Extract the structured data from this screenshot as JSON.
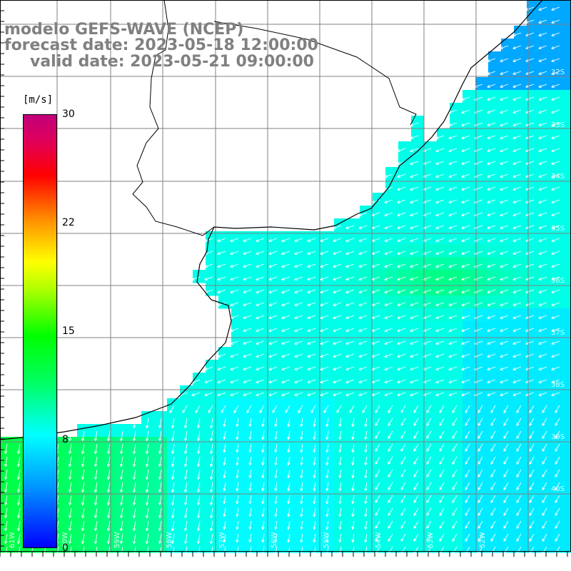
{
  "header": {
    "model": "modelo GEFS-WAVE (NCEP)",
    "forecast": "forecast date: 2023-05-18 12:00:00",
    "valid": "valid date: 2023-05-21 09:00:00"
  },
  "colorbar": {
    "unit": "[m/s]",
    "ticks": [
      {
        "value": 30,
        "label": "30"
      },
      {
        "value": 22,
        "label": "22"
      },
      {
        "value": 15,
        "label": "15"
      },
      {
        "value": 8,
        "label": "8"
      },
      {
        "value": 0,
        "label": "0"
      }
    ],
    "range": [
      0,
      30
    ],
    "colors": [
      "#0000ff",
      "#0096ff",
      "#00ffff",
      "#00ff64",
      "#00ff00",
      "#b4ff00",
      "#ffff00",
      "#ff8c00",
      "#ff0000",
      "#e0005a",
      "#c0007a"
    ]
  },
  "map": {
    "lat_labels": [
      "32S",
      "33S",
      "34S",
      "35S",
      "36S",
      "37S",
      "38S",
      "39S",
      "40S"
    ],
    "lon_labels": [
      "61W",
      "60W",
      "59W",
      "58W",
      "57W",
      "56W",
      "55W",
      "54W",
      "53W",
      "52W"
    ],
    "ocean_color": "#00e6ff",
    "coast_color": "#000000",
    "grid_color": "#808080",
    "arrow_color": "#ffffff"
  }
}
